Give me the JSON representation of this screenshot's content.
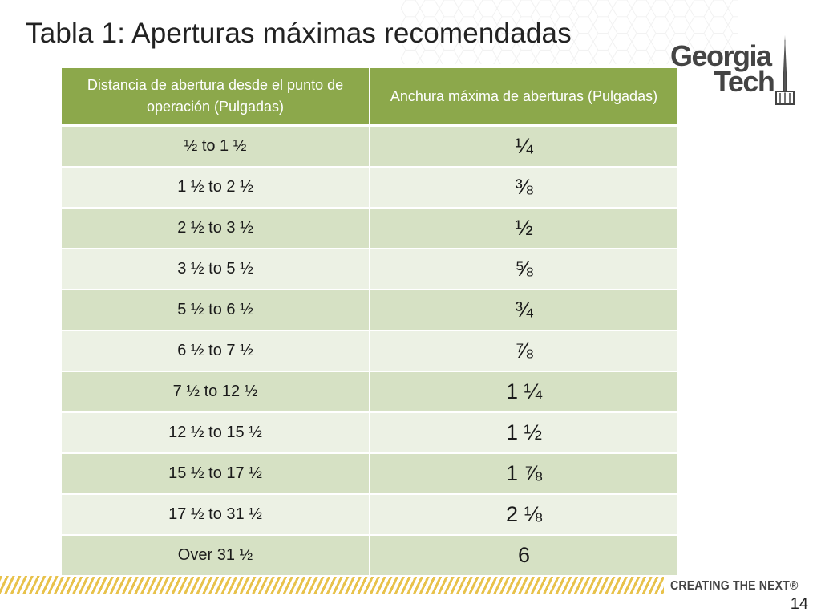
{
  "slide": {
    "title": "Tabla 1: Aperturas máximas recomendadas",
    "page_number": "14"
  },
  "logo": {
    "word1": "Georgia",
    "word2": "Tech"
  },
  "footer": {
    "tagline": "CREATING THE NEXT®"
  },
  "table": {
    "headers": [
      "Distancia de abertura desde el punto de operación (Pulgadas)",
      "Anchura máxima de aberturas (Pulgadas)"
    ],
    "rows": [
      {
        "distance": "½ to 1 ½",
        "width": "¼"
      },
      {
        "distance": "1 ½ to 2 ½",
        "width": "⅜"
      },
      {
        "distance": "2 ½ to 3 ½",
        "width": "½"
      },
      {
        "distance": "3 ½ to 5 ½",
        "width": "⅝"
      },
      {
        "distance": "5 ½ to 6 ½",
        "width": "¾"
      },
      {
        "distance": "6 ½ to 7 ½",
        "width": "⅞"
      },
      {
        "distance": "7 ½ to 12 ½",
        "width": "1 ¼"
      },
      {
        "distance": "12 ½ to 15 ½",
        "width": "1 ½"
      },
      {
        "distance": "15 ½ to 17 ½",
        "width": "1 ⅞"
      },
      {
        "distance": "17 ½ to 31 ½",
        "width": "2 ⅛"
      },
      {
        "distance": "Over 31 ½",
        "width": "6"
      }
    ]
  },
  "colors": {
    "header_green": "#8ca84b",
    "row_dark": "#d6e1c4",
    "row_light": "#ecf1e4",
    "stripe_gold": "#e8c24b"
  }
}
